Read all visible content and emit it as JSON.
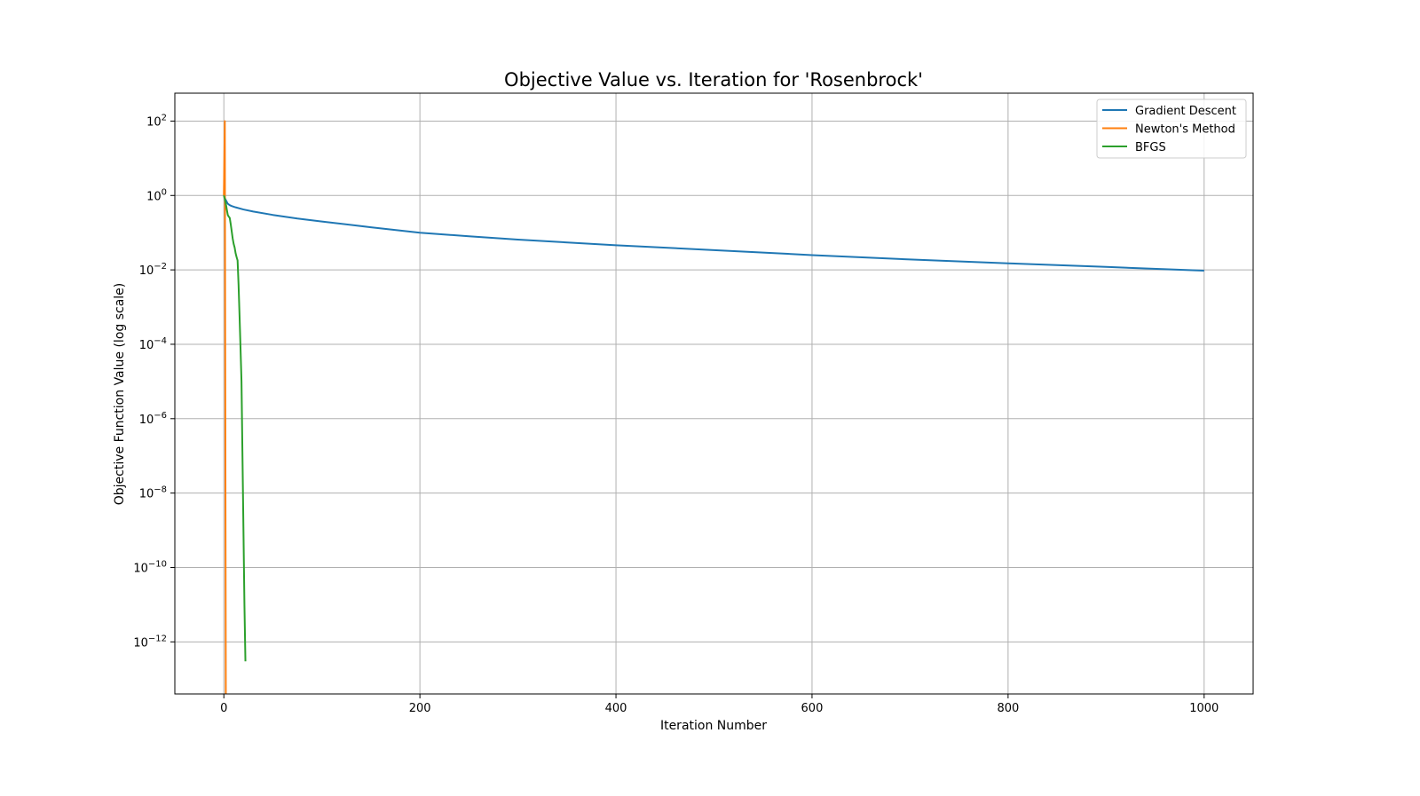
{
  "chart_data": {
    "type": "line",
    "title": "Objective Value vs. Iteration for 'Rosenbrock'",
    "xlabel": "Iteration Number",
    "ylabel": "Objective Function Value (log scale)",
    "yscale": "log",
    "xlim": [
      -50,
      1050
    ],
    "ylim_exponent": [
      -13.4,
      2.75
    ],
    "grid": true,
    "legend_position": "top-right",
    "x_ticks": [
      0,
      200,
      400,
      600,
      800,
      1000
    ],
    "y_tick_exponents": [
      2,
      0,
      -2,
      -4,
      -6,
      -8,
      -10,
      -12
    ],
    "y_tick_base": "10",
    "series": [
      {
        "name": "Gradient Descent",
        "color": "#1f77b4",
        "x": [
          0,
          2,
          4,
          6,
          8,
          12,
          20,
          30,
          50,
          75,
          100,
          150,
          200,
          250,
          300,
          400,
          500,
          600,
          700,
          800,
          900,
          1000
        ],
        "y": [
          1.0,
          0.75,
          0.6,
          0.55,
          0.52,
          0.48,
          0.42,
          0.37,
          0.3,
          0.24,
          0.2,
          0.14,
          0.1,
          0.08,
          0.065,
          0.046,
          0.034,
          0.025,
          0.019,
          0.015,
          0.012,
          0.0095
        ]
      },
      {
        "name": "Newton's Method",
        "color": "#ff7f0e",
        "x": [
          0,
          1,
          2
        ],
        "y": [
          1.0,
          100,
          1e-14
        ]
      },
      {
        "name": "BFGS",
        "color": "#2ca02c",
        "x": [
          0,
          1,
          2,
          3,
          4,
          5,
          6,
          7,
          8,
          9,
          10,
          11,
          12,
          13,
          14,
          15,
          16,
          17,
          18,
          19,
          20,
          21,
          22
        ],
        "y": [
          1.0,
          0.8,
          0.6,
          0.42,
          0.3,
          0.27,
          0.25,
          0.17,
          0.11,
          0.07,
          0.05,
          0.04,
          0.028,
          0.022,
          0.018,
          0.004,
          0.0006,
          8e-05,
          1e-05,
          1e-07,
          1e-09,
          1e-11,
          3e-13
        ]
      }
    ]
  }
}
